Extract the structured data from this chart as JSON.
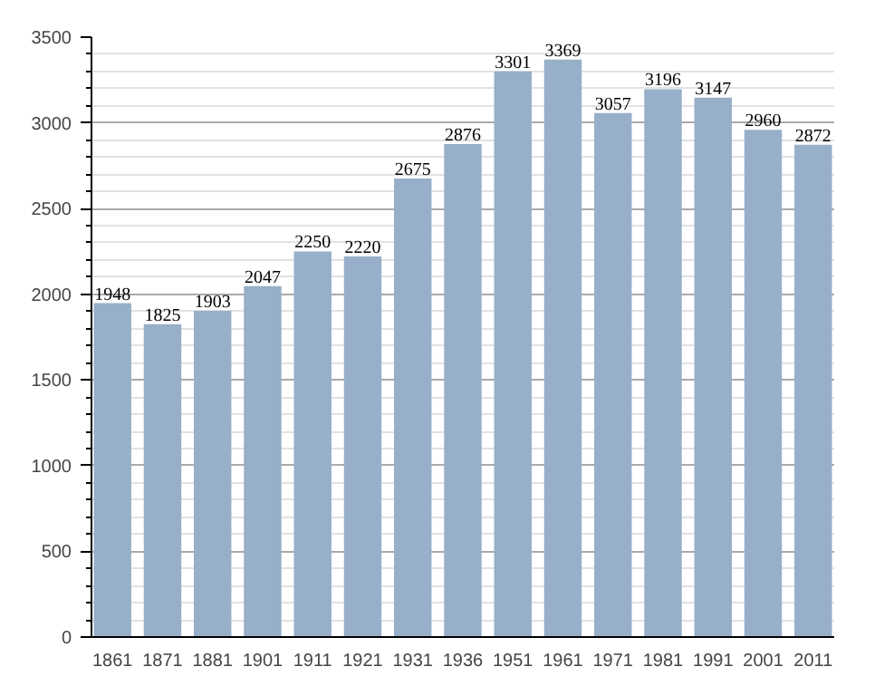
{
  "chart_data": {
    "type": "bar",
    "categories": [
      "1861",
      "1871",
      "1881",
      "1901",
      "1911",
      "1921",
      "1931",
      "1936",
      "1951",
      "1961",
      "1971",
      "1981",
      "1991",
      "2001",
      "2011"
    ],
    "values": [
      1948,
      1825,
      1903,
      2047,
      2250,
      2220,
      2675,
      2876,
      3301,
      3369,
      3057,
      3196,
      3147,
      2960,
      2872
    ],
    "color": "#97afc9",
    "data_labels": true,
    "grid": "y",
    "ylim": [
      0,
      3500
    ],
    "yticks": [
      0,
      {
        "value": 100,
        "label": null
      },
      {
        "value": 200,
        "label": null
      },
      {
        "value": 300,
        "label": null
      },
      {
        "value": 400,
        "label": null
      },
      500,
      {
        "value": 600,
        "label": null
      },
      {
        "value": 700,
        "label": null
      },
      {
        "value": 800,
        "label": null
      },
      {
        "value": 900,
        "label": null
      },
      1000,
      {
        "value": 1100,
        "label": null
      },
      {
        "value": 1200,
        "label": null
      },
      {
        "value": 1300,
        "label": null
      },
      {
        "value": 1400,
        "label": null
      },
      1500,
      {
        "value": 1600,
        "label": null
      },
      {
        "value": 1700,
        "label": null
      },
      {
        "value": 1800,
        "label": null
      },
      {
        "value": 1900,
        "label": null
      },
      2000,
      {
        "value": 2100,
        "label": null
      },
      {
        "value": 2200,
        "label": null
      },
      {
        "value": 2300,
        "label": null
      },
      {
        "value": 2400,
        "label": null
      },
      2500,
      {
        "value": 2600,
        "label": null
      },
      {
        "value": 2700,
        "label": null
      },
      {
        "value": 2800,
        "label": null
      },
      {
        "value": 2900,
        "label": null
      },
      3000,
      {
        "value": 3100,
        "label": null
      },
      {
        "value": 3200,
        "label": null
      },
      {
        "value": 3300,
        "label": null
      },
      {
        "value": 3400,
        "label": null
      },
      3500
    ]
  }
}
